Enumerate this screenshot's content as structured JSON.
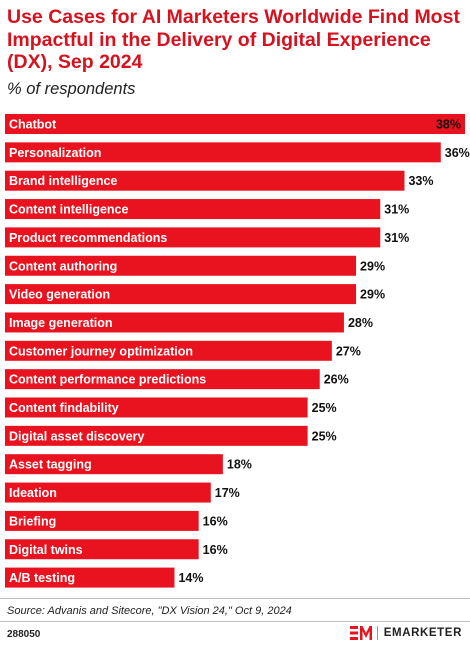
{
  "chart_data": {
    "type": "bar",
    "orientation": "horizontal",
    "title": "Use Cases for AI Marketers Worldwide Find Most Impactful in the Delivery of Digital Experience (DX), Sep 2024",
    "subtitle": "% of respondents",
    "value_suffix": "%",
    "categories": [
      "Chatbot",
      "Personalization",
      "Brand intelligence",
      "Content intelligence",
      "Product recommendations",
      "Content authoring",
      "Video generation",
      "Image generation",
      "Customer journey optimization",
      "Content performance predictions",
      "Content findability",
      "Digital asset discovery",
      "Asset tagging",
      "Ideation",
      "Briefing",
      "Digital twins",
      "A/B testing"
    ],
    "values": [
      38,
      36,
      33,
      31,
      31,
      29,
      29,
      28,
      27,
      26,
      25,
      25,
      18,
      17,
      16,
      16,
      14
    ],
    "xlim": [
      0,
      38
    ],
    "bar_color": "#e8131f",
    "grid": false,
    "legend": "none"
  },
  "footer": {
    "source": "Source: Advanis and Sitecore, \"DX Vision 24,\" Oct 9, 2024",
    "chart_id": "288050",
    "brand_name": "EMARKETER",
    "brand_color": "#e8131f"
  }
}
